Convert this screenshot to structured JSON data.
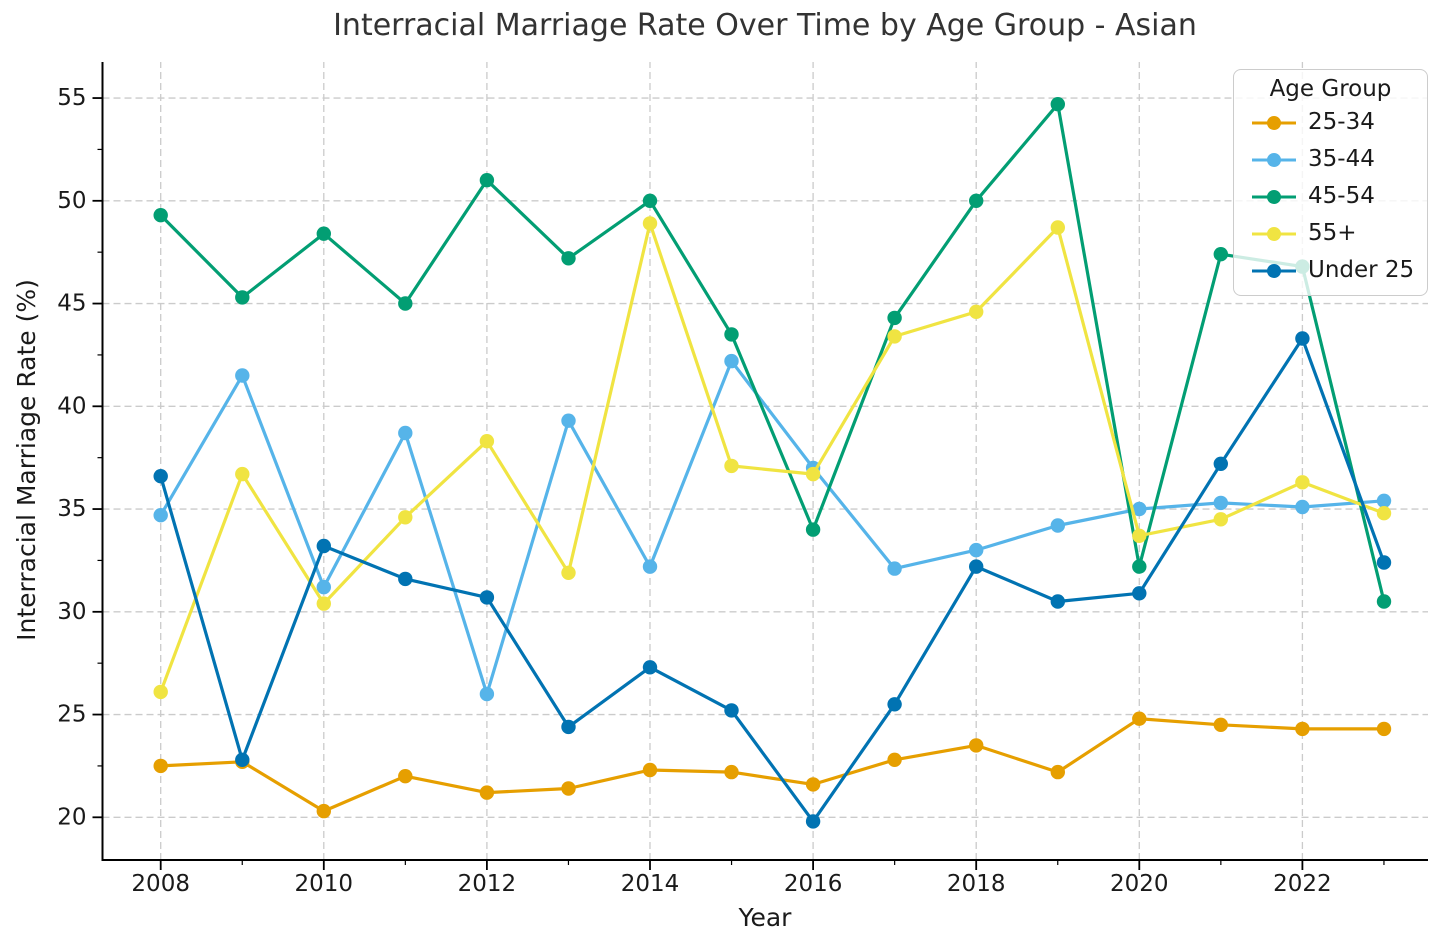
{
  "chart_data": {
    "type": "line",
    "title": "Interracial Marriage Rate Over Time by Age Group - Asian",
    "xlabel": "Year",
    "ylabel": "Interracial Marriage Rate (%)",
    "x": [
      2008,
      2009,
      2010,
      2011,
      2012,
      2013,
      2014,
      2015,
      2016,
      2017,
      2018,
      2019,
      2020,
      2021,
      2022,
      2023
    ],
    "xticks": [
      2008,
      2010,
      2012,
      2014,
      2016,
      2018,
      2020,
      2022
    ],
    "yticks": [
      20,
      25,
      30,
      35,
      40,
      45,
      50,
      55
    ],
    "ylim": [
      17.9,
      56.8
    ],
    "grid": true,
    "legend_title": "Age Group",
    "legend_position": "upper right",
    "series": [
      {
        "name": "25-34",
        "color": "#E69F00",
        "values": [
          22.5,
          22.7,
          20.3,
          22.0,
          21.2,
          21.4,
          22.3,
          22.2,
          21.6,
          22.8,
          23.5,
          22.2,
          24.8,
          24.5,
          24.3,
          24.3
        ]
      },
      {
        "name": "35-44",
        "color": "#56B4E9",
        "values": [
          34.7,
          41.5,
          31.2,
          38.7,
          26.0,
          39.3,
          32.2,
          42.2,
          37.0,
          32.1,
          33.0,
          34.2,
          35.0,
          35.3,
          35.1,
          35.4
        ]
      },
      {
        "name": "45-54",
        "color": "#029E73",
        "values": [
          49.3,
          45.3,
          48.4,
          45.0,
          51.0,
          47.2,
          50.0,
          43.5,
          34.0,
          44.3,
          50.0,
          54.7,
          32.2,
          47.4,
          46.8,
          30.5
        ]
      },
      {
        "name": "55+",
        "color": "#F0E442",
        "values": [
          26.1,
          36.7,
          30.4,
          34.6,
          38.3,
          31.9,
          48.9,
          37.1,
          36.7,
          43.4,
          44.6,
          48.7,
          33.7,
          34.5,
          36.3,
          34.8
        ]
      },
      {
        "name": "Under 25",
        "color": "#0173B2",
        "values": [
          36.6,
          22.8,
          33.2,
          31.6,
          30.7,
          24.4,
          27.3,
          25.2,
          19.8,
          25.5,
          32.2,
          30.5,
          30.9,
          37.2,
          43.3,
          32.4
        ]
      }
    ]
  }
}
